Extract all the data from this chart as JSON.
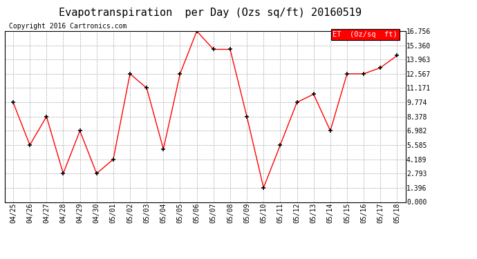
{
  "title": "Evapotranspiration  per Day (Ozs sq/ft) 20160519",
  "copyright": "Copyright 2016 Cartronics.com",
  "legend_label": "ET  (0z/sq  ft)",
  "x_labels": [
    "04/25",
    "04/26",
    "04/27",
    "04/28",
    "04/29",
    "04/30",
    "05/01",
    "05/02",
    "05/03",
    "05/04",
    "05/05",
    "05/06",
    "05/07",
    "05/08",
    "05/09",
    "05/10",
    "05/11",
    "05/12",
    "05/13",
    "05/14",
    "05/15",
    "05/16",
    "05/17",
    "05/18"
  ],
  "y_values": [
    9.774,
    5.585,
    8.378,
    2.793,
    6.982,
    2.793,
    4.189,
    12.567,
    11.171,
    5.189,
    12.567,
    16.756,
    14.963,
    14.963,
    8.378,
    1.396,
    5.585,
    9.774,
    10.57,
    6.982,
    12.567,
    12.567,
    13.165,
    14.36
  ],
  "ylim": [
    0,
    16.756
  ],
  "yticks": [
    0.0,
    1.396,
    2.793,
    4.189,
    5.585,
    6.982,
    8.378,
    9.774,
    11.171,
    12.567,
    13.963,
    15.36,
    16.756
  ],
  "line_color": "red",
  "marker_color": "black",
  "bg_color": "#ffffff",
  "grid_color": "#aaaaaa",
  "legend_bg": "red",
  "legend_text_color": "white",
  "title_fontsize": 11,
  "copyright_fontsize": 7,
  "tick_fontsize": 7,
  "legend_fontsize": 7.5
}
